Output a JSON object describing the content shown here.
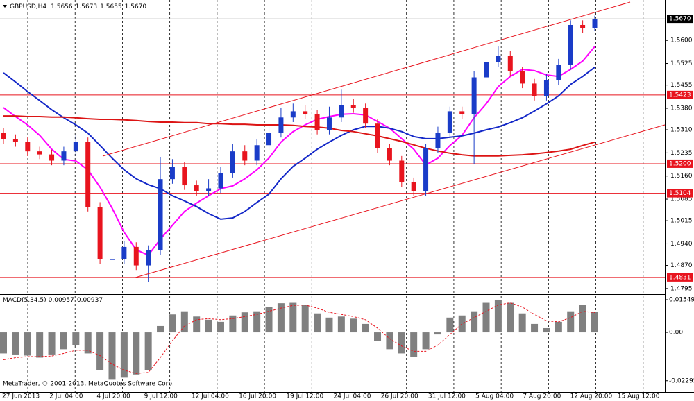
{
  "chart_data": [
    {
      "type": "candlestick",
      "title": "GBPUSD,H4",
      "header_values": [
        "1.5656",
        "1.5673",
        "1.5655",
        "1.5670"
      ],
      "up_color": "#1a3cc8",
      "down_color": "#e8141e",
      "open": [
        1.53,
        1.528,
        1.527,
        1.524,
        1.523,
        1.521,
        1.524,
        1.527,
        1.506,
        1.489,
        1.489,
        1.493,
        1.487,
        1.492,
        1.515,
        1.519,
        1.513,
        1.511,
        1.512,
        1.517,
        1.524,
        1.521,
        1.526,
        1.53,
        1.535,
        1.537,
        1.536,
        1.531,
        1.535,
        1.539,
        1.538,
        1.533,
        1.525,
        1.521,
        1.514,
        1.511,
        1.525,
        1.53,
        1.537,
        1.536,
        1.548,
        1.553,
        1.555,
        1.55,
        1.546,
        1.542,
        1.547,
        1.552,
        1.565,
        1.564
      ],
      "high": [
        1.5315,
        1.5295,
        1.5285,
        1.5255,
        1.5245,
        1.5255,
        1.5295,
        1.5285,
        1.5075,
        1.491,
        1.495,
        1.4945,
        1.4935,
        1.522,
        1.5215,
        1.5205,
        1.5145,
        1.515,
        1.519,
        1.5265,
        1.526,
        1.528,
        1.532,
        1.538,
        1.5395,
        1.539,
        1.5375,
        1.5385,
        1.544,
        1.541,
        1.5395,
        1.5345,
        1.5265,
        1.5225,
        1.5155,
        1.5265,
        1.532,
        1.5385,
        1.5385,
        1.55,
        1.555,
        1.558,
        1.5565,
        1.5515,
        1.5475,
        1.549,
        1.554,
        1.5665,
        1.5665,
        1.568
      ],
      "low": [
        1.5265,
        1.5255,
        1.5225,
        1.5215,
        1.5195,
        1.5195,
        1.5225,
        1.5045,
        1.4875,
        1.487,
        1.4875,
        1.4855,
        1.4815,
        1.4905,
        1.5135,
        1.5115,
        1.5095,
        1.5095,
        1.5105,
        1.5155,
        1.5195,
        1.5195,
        1.5245,
        1.5285,
        1.5335,
        1.5345,
        1.5295,
        1.5295,
        1.5335,
        1.5365,
        1.5315,
        1.5235,
        1.5195,
        1.5125,
        1.5095,
        1.5095,
        1.5235,
        1.5285,
        1.5345,
        1.52,
        1.5465,
        1.5515,
        1.5485,
        1.5445,
        1.5405,
        1.5405,
        1.5455,
        1.5505,
        1.5625,
        1.563
      ],
      "close": [
        1.528,
        1.527,
        1.524,
        1.523,
        1.521,
        1.524,
        1.527,
        1.506,
        1.489,
        1.489,
        1.493,
        1.487,
        1.492,
        1.515,
        1.519,
        1.513,
        1.511,
        1.512,
        1.517,
        1.524,
        1.521,
        1.526,
        1.53,
        1.535,
        1.537,
        1.536,
        1.531,
        1.535,
        1.539,
        1.538,
        1.533,
        1.525,
        1.521,
        1.514,
        1.511,
        1.525,
        1.53,
        1.537,
        1.536,
        1.548,
        1.553,
        1.555,
        1.55,
        1.546,
        1.542,
        1.547,
        1.552,
        1.565,
        1.564,
        1.567
      ],
      "series": [
        {
          "color": "#ff00ff",
          "values": [
            1.5382,
            1.5353,
            1.5326,
            1.5292,
            1.5247,
            1.5214,
            1.5209,
            1.518,
            1.5124,
            1.5056,
            1.4977,
            1.4921,
            1.4903,
            1.4955,
            1.5,
            1.5045,
            1.5072,
            1.5096,
            1.5119,
            1.5128,
            1.5151,
            1.518,
            1.5218,
            1.527,
            1.5304,
            1.5326,
            1.5344,
            1.5353,
            1.536,
            1.5362,
            1.5358,
            1.5337,
            1.5315,
            1.5281,
            1.5247,
            1.5196,
            1.5218,
            1.5259,
            1.5292,
            1.5349,
            1.5394,
            1.545,
            1.5483,
            1.5506,
            1.5502,
            1.5488,
            1.5483,
            1.5506,
            1.5533,
            1.558
          ]
        },
        {
          "color": "#1428c8",
          "values": [
            1.5495,
            1.5465,
            1.5434,
            1.5405,
            1.5375,
            1.5349,
            1.5326,
            1.5299,
            1.5259,
            1.5218,
            1.518,
            1.5151,
            1.5132,
            1.5119,
            1.5096,
            1.5079,
            1.5061,
            1.5038,
            1.502,
            1.5024,
            1.5045,
            1.5074,
            1.5101,
            1.5151,
            1.5191,
            1.5218,
            1.5247,
            1.527,
            1.5292,
            1.531,
            1.5321,
            1.5321,
            1.5315,
            1.5304,
            1.5288,
            1.5281,
            1.5281,
            1.5286,
            1.529,
            1.5299,
            1.531,
            1.5319,
            1.5333,
            1.5349,
            1.5371,
            1.5394,
            1.542,
            1.5457,
            1.5483,
            1.5513
          ]
        },
        {
          "color": "#dc1414",
          "values": [
            1.5355,
            1.5355,
            1.5353,
            1.5353,
            1.5351,
            1.5351,
            1.5349,
            1.5346,
            1.5344,
            1.5344,
            1.5342,
            1.534,
            1.5337,
            1.5335,
            1.5335,
            1.5333,
            1.5333,
            1.533,
            1.533,
            1.5328,
            1.5328,
            1.5326,
            1.5326,
            1.5326,
            1.5324,
            1.5321,
            1.5319,
            1.5315,
            1.5308,
            1.5304,
            1.5297,
            1.529,
            1.5281,
            1.5272,
            1.5261,
            1.525,
            1.5241,
            1.5234,
            1.5229,
            1.5225,
            1.5225,
            1.5225,
            1.5227,
            1.5229,
            1.5232,
            1.5236,
            1.5241,
            1.5247,
            1.5259,
            1.527
          ]
        }
      ],
      "levels": [
        {
          "value": 1.5423,
          "label": "1.5423"
        },
        {
          "value": 1.52,
          "label": "1.5200"
        },
        {
          "value": 1.5104,
          "label": "1.5104"
        },
        {
          "value": 1.4831,
          "label": "1.4831"
        }
      ],
      "level_color": "#e8141e",
      "current_price": {
        "value": 1.567,
        "label": "1.5670"
      },
      "ylim": [
        1.4779,
        1.5731
      ],
      "yticks": [
        {
          "value": 1.56,
          "label": "1.5600"
        },
        {
          "value": 1.5525,
          "label": "1.5525"
        },
        {
          "value": 1.5455,
          "label": "1.5455"
        },
        {
          "value": 1.538,
          "label": "1.5380"
        },
        {
          "value": 1.531,
          "label": "1.5310"
        },
        {
          "value": 1.5235,
          "label": "1.5235"
        },
        {
          "value": 1.516,
          "label": "1.5160"
        },
        {
          "value": 1.5085,
          "label": "1.5085"
        },
        {
          "value": 1.5015,
          "label": "1.5015"
        },
        {
          "value": 1.494,
          "label": "1.4940"
        },
        {
          "value": 1.487,
          "label": "1.4870"
        },
        {
          "value": 1.4795,
          "label": "1.4795"
        }
      ],
      "x_labels": [
        "27 Jun 2013",
        "2 Jul 04:00",
        "4 Jul 20:00",
        "9 Jul 12:00",
        "12 Jul 04:00",
        "16 Jul 20:00",
        "19 Jul 12:00",
        "24 Jul 04:00",
        "26 Jul 20:00",
        "31 Jul 12:00",
        "5 Aug 04:00",
        "7 Aug 20:00",
        "12 Aug 20:00",
        "15 Aug 12:00"
      ]
    },
    {
      "type": "macd",
      "title": "MACD(5,34,5)",
      "header_values": [
        "0.00957",
        "0.00937"
      ],
      "footer": "MetaTrader, © 2001-2013, MetaQuotes Software Corp.",
      "histogram_color": "#808080",
      "signal_color": "#e8141e",
      "histogram": [
        -0.01,
        -0.0105,
        -0.011,
        -0.012,
        -0.0105,
        -0.008,
        -0.006,
        -0.01,
        -0.018,
        -0.0225,
        -0.0215,
        -0.02,
        -0.018,
        0.003,
        0.0085,
        0.01,
        0.0075,
        0.006,
        0.005,
        0.008,
        0.0095,
        0.01,
        0.012,
        0.0138,
        0.014,
        0.013,
        0.009,
        0.007,
        0.0075,
        0.0065,
        0.004,
        -0.004,
        -0.008,
        -0.01,
        -0.0115,
        -0.008,
        -0.001,
        0.007,
        0.008,
        0.01,
        0.014,
        0.0155,
        0.014,
        0.009,
        0.004,
        0.002,
        0.005,
        0.01,
        0.013,
        0.00957
      ],
      "signal": [
        -0.013,
        -0.012,
        -0.0115,
        -0.0115,
        -0.0112,
        -0.01,
        -0.0085,
        -0.0085,
        -0.011,
        -0.015,
        -0.018,
        -0.0195,
        -0.019,
        -0.012,
        -0.004,
        0.003,
        0.006,
        0.0065,
        0.006,
        0.0065,
        0.0075,
        0.0085,
        0.01,
        0.0115,
        0.0128,
        0.013,
        0.0115,
        0.0095,
        0.0085,
        0.0075,
        0.006,
        0.002,
        -0.003,
        -0.0065,
        -0.009,
        -0.009,
        -0.006,
        -0.001,
        0.004,
        0.007,
        0.01,
        0.013,
        0.014,
        0.012,
        0.0085,
        0.0055,
        0.005,
        0.007,
        0.01,
        0.00937
      ],
      "ylim": [
        -0.0283,
        0.0178
      ],
      "yticks": [
        0.01549,
        {
          "value": 0,
          "label": "0.00"
        },
        -0.02295
      ]
    }
  ]
}
